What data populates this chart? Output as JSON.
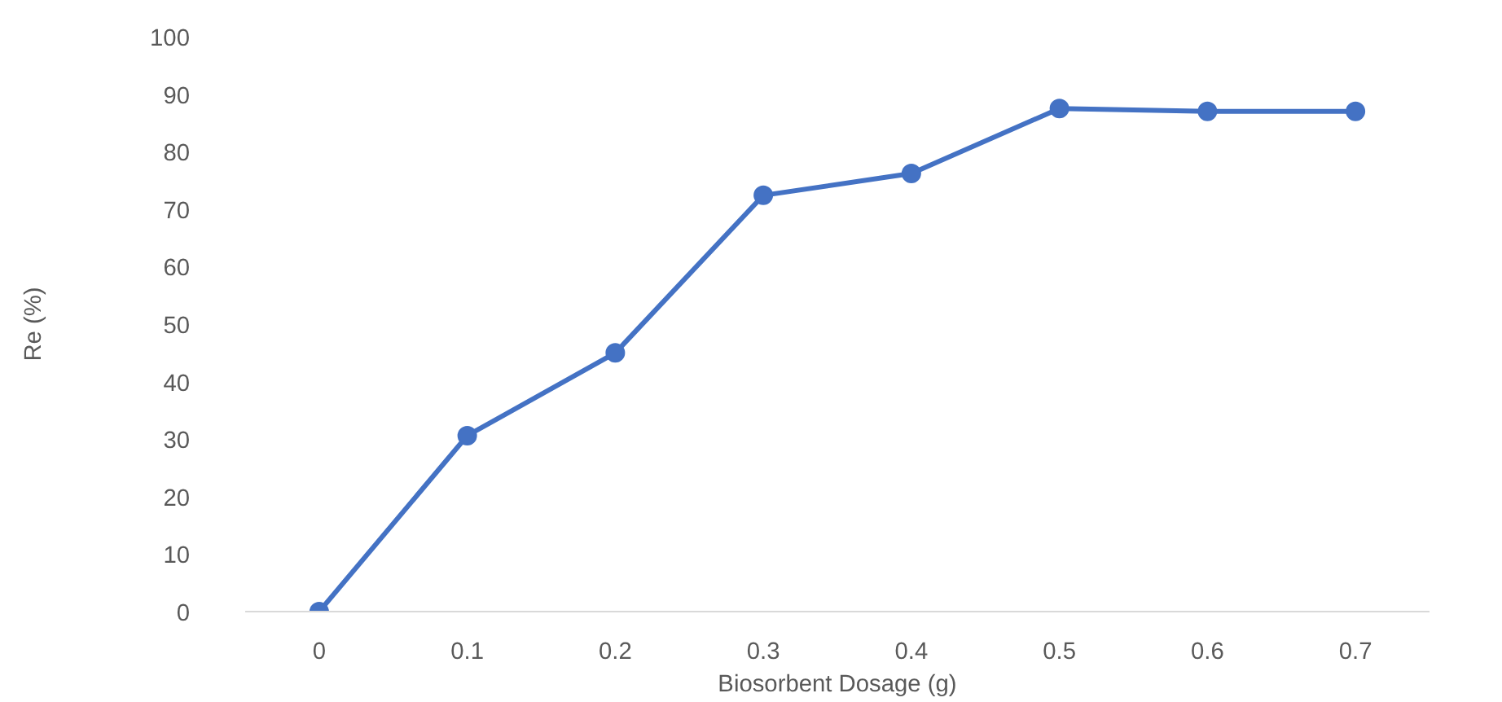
{
  "chart_data": {
    "type": "line",
    "xlabel": "Biosorbent Dosage (g)",
    "ylabel": "Re (%)",
    "categories": [
      "0",
      "0.1",
      "0.2",
      "0.3",
      "0.4",
      "0.5",
      "0.6",
      "0.7"
    ],
    "series": [
      {
        "color": "#4472c4",
        "values": [
          0,
          30.6,
          45,
          72.4,
          76.2,
          87.5,
          87,
          87
        ]
      }
    ],
    "ylim": [
      0,
      100
    ],
    "yticks": [
      0,
      10,
      20,
      30,
      40,
      50,
      60,
      70,
      80,
      90,
      100
    ],
    "grid": false,
    "marker": "circle",
    "line_style": "solid"
  }
}
